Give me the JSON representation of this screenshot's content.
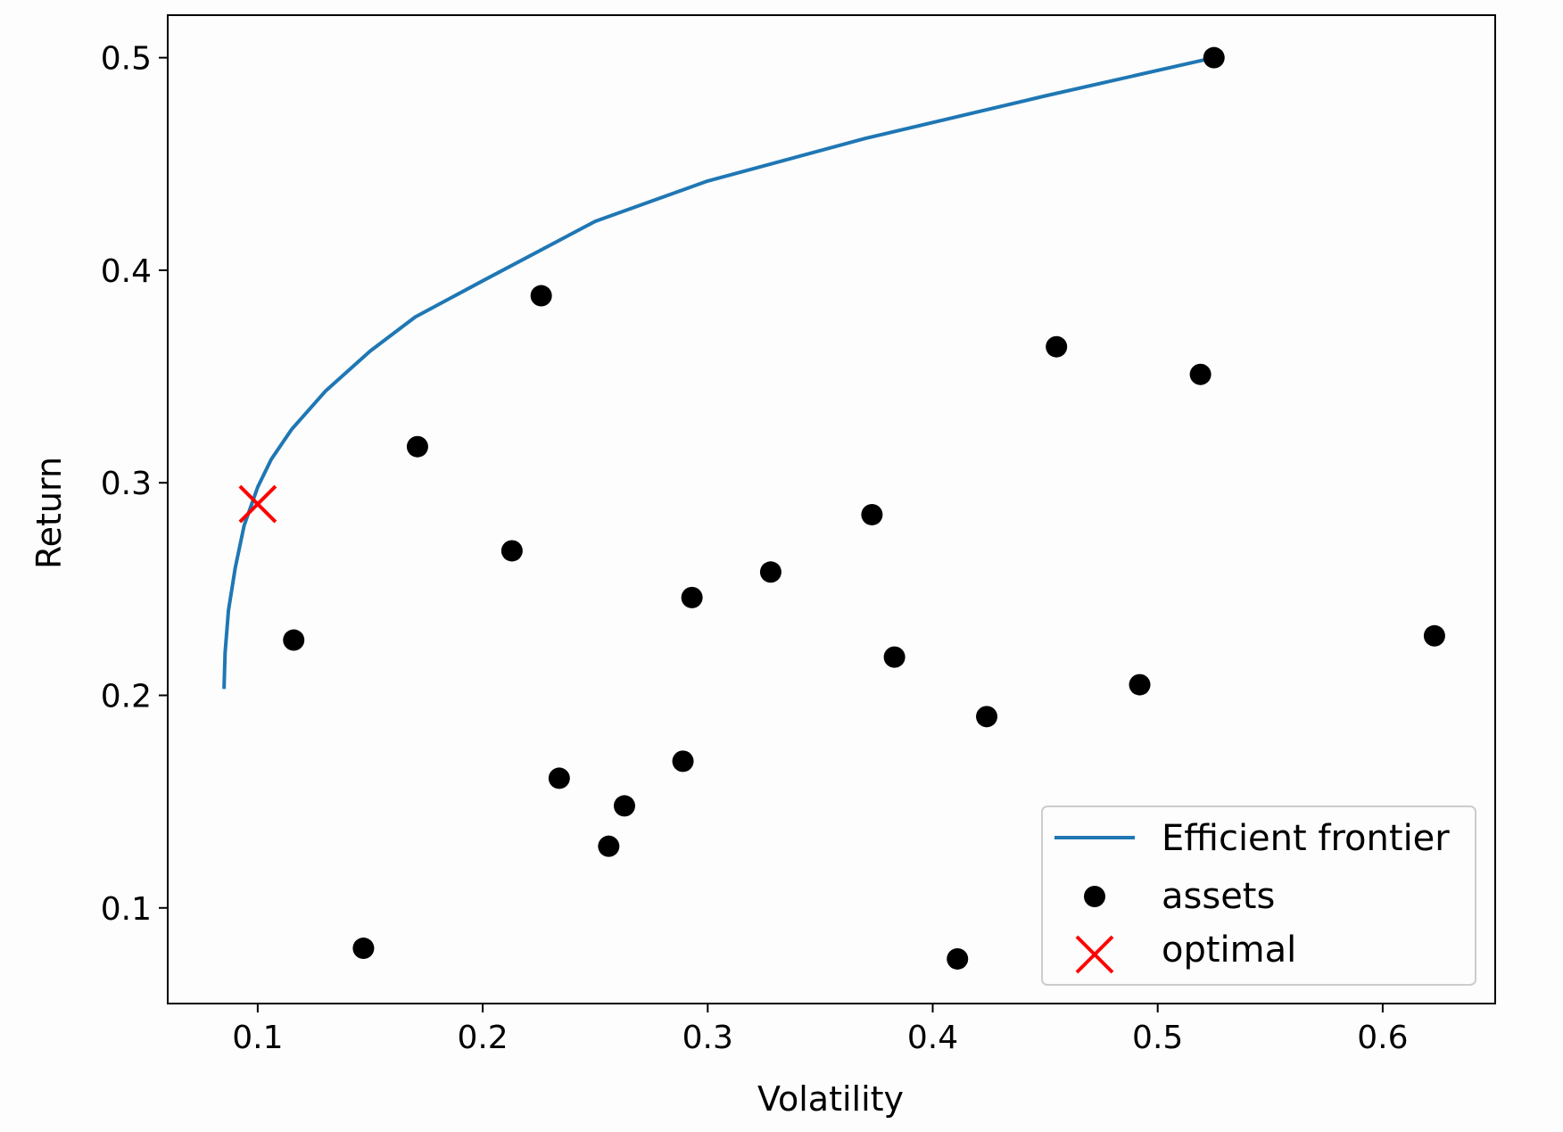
{
  "chart_data": {
    "type": "scatter",
    "title": "",
    "xlabel": "Volatility",
    "ylabel": "Return",
    "xlim": [
      0.06,
      0.65
    ],
    "ylim": [
      0.055,
      0.52
    ],
    "xticks": [
      0.1,
      0.2,
      0.3,
      0.4,
      0.5,
      0.6
    ],
    "xtick_labels": [
      "0.1",
      "0.2",
      "0.3",
      "0.4",
      "0.5",
      "0.6"
    ],
    "yticks": [
      0.1,
      0.2,
      0.3,
      0.4,
      0.5
    ],
    "ytick_labels": [
      "0.1",
      "0.2",
      "0.3",
      "0.4",
      "0.5"
    ],
    "grid": false,
    "legend_position": "lower-right",
    "legend": [
      "Efficient frontier",
      "assets",
      "optimal"
    ],
    "series": [
      {
        "name": "Efficient frontier",
        "kind": "line",
        "color": "#1f77b4",
        "points": [
          [
            0.085,
            0.203
          ],
          [
            0.0855,
            0.22
          ],
          [
            0.087,
            0.24
          ],
          [
            0.09,
            0.26
          ],
          [
            0.094,
            0.28
          ],
          [
            0.1,
            0.298
          ],
          [
            0.106,
            0.311
          ],
          [
            0.115,
            0.325
          ],
          [
            0.13,
            0.343
          ],
          [
            0.15,
            0.362
          ],
          [
            0.17,
            0.378
          ],
          [
            0.2,
            0.395
          ],
          [
            0.25,
            0.423
          ],
          [
            0.3,
            0.442
          ],
          [
            0.37,
            0.462
          ],
          [
            0.45,
            0.482
          ],
          [
            0.525,
            0.5
          ]
        ]
      },
      {
        "name": "assets",
        "kind": "scatter",
        "color": "#000000",
        "points": [
          [
            0.525,
            0.5
          ],
          [
            0.226,
            0.388
          ],
          [
            0.455,
            0.364
          ],
          [
            0.519,
            0.351
          ],
          [
            0.171,
            0.317
          ],
          [
            0.373,
            0.285
          ],
          [
            0.213,
            0.268
          ],
          [
            0.328,
            0.258
          ],
          [
            0.293,
            0.246
          ],
          [
            0.116,
            0.226
          ],
          [
            0.623,
            0.228
          ],
          [
            0.383,
            0.218
          ],
          [
            0.492,
            0.205
          ],
          [
            0.424,
            0.19
          ],
          [
            0.289,
            0.169
          ],
          [
            0.234,
            0.161
          ],
          [
            0.263,
            0.148
          ],
          [
            0.256,
            0.129
          ],
          [
            0.147,
            0.081
          ],
          [
            0.411,
            0.076
          ]
        ]
      },
      {
        "name": "optimal",
        "kind": "marker-x",
        "color": "#ff0000",
        "points": [
          [
            0.1,
            0.29
          ]
        ]
      }
    ]
  }
}
